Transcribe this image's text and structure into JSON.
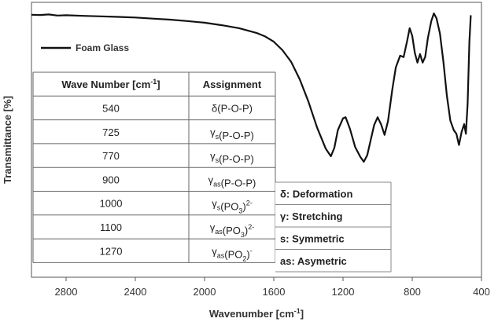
{
  "chart_data": {
    "type": "line",
    "title": "",
    "xlabel": "Wavenumber [cm",
    "xlabel_sup": "-1",
    "xlabel_end": "]",
    "ylabel": "Transmittance [%]",
    "xlim": [
      3000,
      400
    ],
    "x_reversed": true,
    "xticks": [
      2800,
      2400,
      2000,
      1600,
      1200,
      800,
      400
    ],
    "ylim": [
      0,
      100
    ],
    "grid": false,
    "legend_placement": "top-left",
    "series": [
      {
        "name": "Foam Glass",
        "color": "#111111",
        "points": [
          [
            3000,
            95.5
          ],
          [
            2950,
            95.4
          ],
          [
            2900,
            95.6
          ],
          [
            2850,
            95.2
          ],
          [
            2800,
            95.3
          ],
          [
            2700,
            95.1
          ],
          [
            2600,
            94.9
          ],
          [
            2500,
            94.7
          ],
          [
            2400,
            94.5
          ],
          [
            2300,
            94.1
          ],
          [
            2200,
            93.7
          ],
          [
            2100,
            93.2
          ],
          [
            2000,
            92.6
          ],
          [
            1900,
            91.7
          ],
          [
            1800,
            90.6
          ],
          [
            1700,
            88.9
          ],
          [
            1650,
            87.6
          ],
          [
            1600,
            85.7
          ],
          [
            1550,
            82.6
          ],
          [
            1500,
            78.4
          ],
          [
            1450,
            72.0
          ],
          [
            1400,
            63.9
          ],
          [
            1350,
            54.5
          ],
          [
            1300,
            46.8
          ],
          [
            1270,
            44.0
          ],
          [
            1250,
            47.1
          ],
          [
            1230,
            53.5
          ],
          [
            1200,
            57.8
          ],
          [
            1185,
            58.2
          ],
          [
            1160,
            54.0
          ],
          [
            1130,
            47.4
          ],
          [
            1100,
            43.8
          ],
          [
            1080,
            42.0
          ],
          [
            1060,
            44.4
          ],
          [
            1040,
            49.9
          ],
          [
            1020,
            55.4
          ],
          [
            1000,
            58.2
          ],
          [
            980,
            55.6
          ],
          [
            960,
            51.8
          ],
          [
            940,
            56.8
          ],
          [
            915,
            68.4
          ],
          [
            895,
            76.3
          ],
          [
            870,
            80.6
          ],
          [
            850,
            80.1
          ],
          [
            830,
            85.8
          ],
          [
            815,
            90.6
          ],
          [
            800,
            87.8
          ],
          [
            785,
            81.6
          ],
          [
            770,
            78.1
          ],
          [
            755,
            81.2
          ],
          [
            740,
            78.1
          ],
          [
            725,
            80.2
          ],
          [
            710,
            86.9
          ],
          [
            690,
            93.2
          ],
          [
            675,
            96.0
          ],
          [
            660,
            94.2
          ],
          [
            640,
            88.7
          ],
          [
            620,
            78.4
          ],
          [
            600,
            66.1
          ],
          [
            580,
            57.0
          ],
          [
            560,
            53.5
          ],
          [
            545,
            52.2
          ],
          [
            530,
            48.1
          ],
          [
            515,
            52.8
          ],
          [
            500,
            55.7
          ],
          [
            490,
            52.2
          ],
          [
            480,
            63.2
          ],
          [
            470,
            85.4
          ],
          [
            462,
            95.3
          ]
        ]
      }
    ],
    "table": {
      "headers": [
        "Wave Number [cm",
        "-1",
        "]",
        "Assignment"
      ],
      "rows": [
        {
          "wn": "540",
          "sym": "δ",
          "sub": "",
          "sup": "",
          "group": "(P-O-P)"
        },
        {
          "wn": "725",
          "sym": "γ",
          "sub": "s",
          "sup": "",
          "group": "(P-O-P)"
        },
        {
          "wn": "770",
          "sym": "γ",
          "sub": "s",
          "sup": "",
          "group": "(P-O-P)"
        },
        {
          "wn": "900",
          "sym": "γ",
          "sub": "as",
          "sup": "",
          "group": "(P-O-P)"
        },
        {
          "wn": "1000",
          "sym": "γ",
          "sub": "s",
          "sup": "2-",
          "group": "(PO",
          "group_sub": "3",
          "group_end": ")"
        },
        {
          "wn": "1100",
          "sym": "γ",
          "sub": "as",
          "sup": "2-",
          "group": "(PO",
          "group_sub": "3",
          "group_end": ")"
        },
        {
          "wn": "1270",
          "sym": "γ",
          "sub": "as",
          "sup": "-",
          "group": "(PO",
          "group_sub": "2",
          "group_end": ")"
        }
      ]
    },
    "notes": [
      "δ: Deformation",
      "γ: Stretching",
      "s: Symmetric",
      "as: Asymetric"
    ]
  }
}
